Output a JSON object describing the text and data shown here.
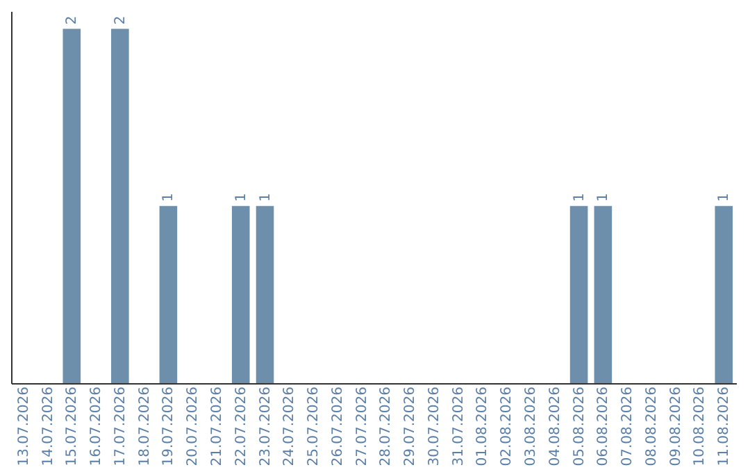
{
  "chart_data": {
    "type": "bar",
    "categories": [
      "13.07.2026",
      "14.07.2026",
      "15.07.2026",
      "16.07.2026",
      "17.07.2026",
      "18.07.2026",
      "19.07.2026",
      "20.07.2026",
      "21.07.2026",
      "22.07.2026",
      "23.07.2026",
      "24.07.2026",
      "25.07.2026",
      "26.07.2026",
      "27.07.2026",
      "28.07.2026",
      "29.07.2026",
      "30.07.2026",
      "31.07.2026",
      "01.08.2026",
      "02.08.2026",
      "03.08.2026",
      "04.08.2026",
      "05.08.2026",
      "06.08.2026",
      "07.08.2026",
      "08.08.2026",
      "09.08.2026",
      "10.08.2026",
      "11.08.2026"
    ],
    "values": [
      null,
      null,
      2,
      null,
      2,
      null,
      1,
      null,
      null,
      1,
      1,
      null,
      null,
      null,
      null,
      null,
      null,
      null,
      null,
      null,
      null,
      null,
      null,
      1,
      1,
      null,
      null,
      null,
      null,
      1
    ],
    "color": "#6d8fab",
    "ylim": [
      0,
      2.1
    ],
    "data_labels": true,
    "tick_labels": "x",
    "grid": false
  }
}
